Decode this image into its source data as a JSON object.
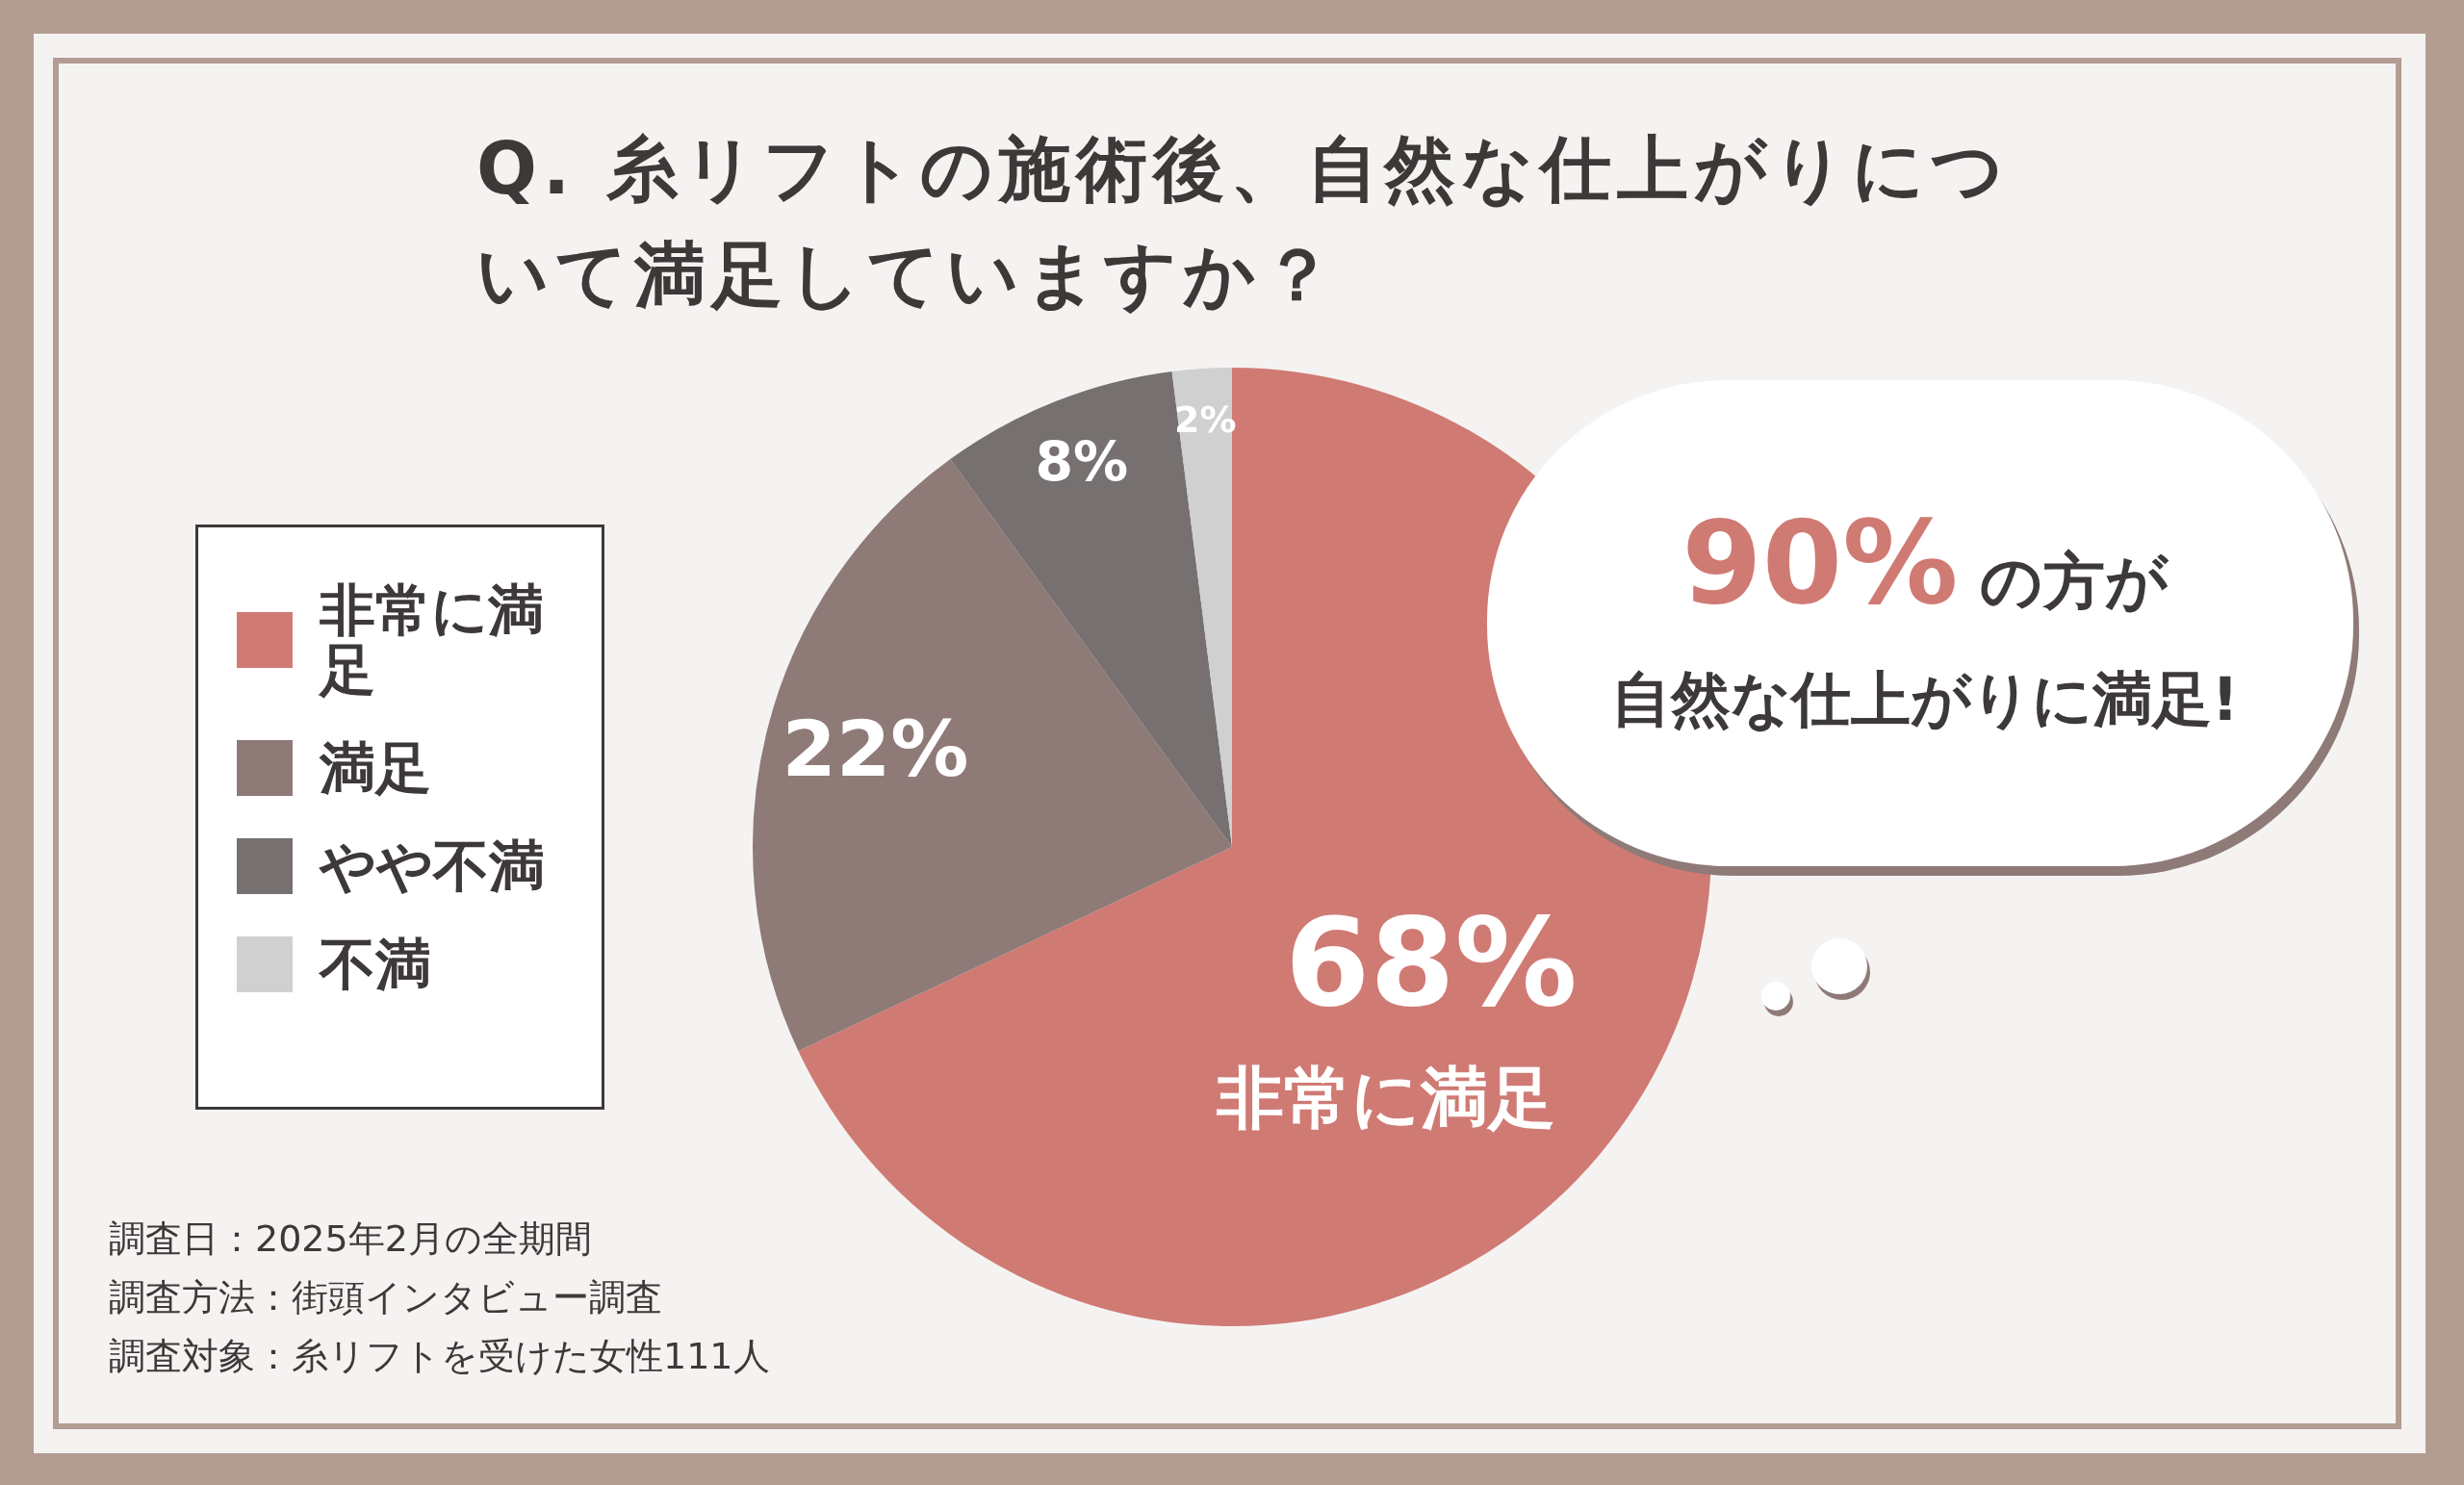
{
  "chart_data": {
    "type": "pie",
    "title": "Q. 糸リフトの施術後、自然な仕上がりについて満足していますか？",
    "categories": [
      "非常に満足",
      "満足",
      "やや不満",
      "不満"
    ],
    "values": [
      68,
      22,
      8,
      2
    ],
    "value_labels": [
      "68%",
      "22%",
      "8%",
      "2%"
    ],
    "colors": [
      "#d07a74",
      "#8e7a77",
      "#767170",
      "#d0d0d0"
    ],
    "legend": "left",
    "annotations": [
      "非常に満足",
      "90%",
      "の方が",
      "自然な仕上がりに満足!",
      "調査日：2025年2月の全期間",
      "調査方法：街頭インタビュー調査",
      "調査対象：糸リフトを受けた女性111人"
    ]
  }
}
